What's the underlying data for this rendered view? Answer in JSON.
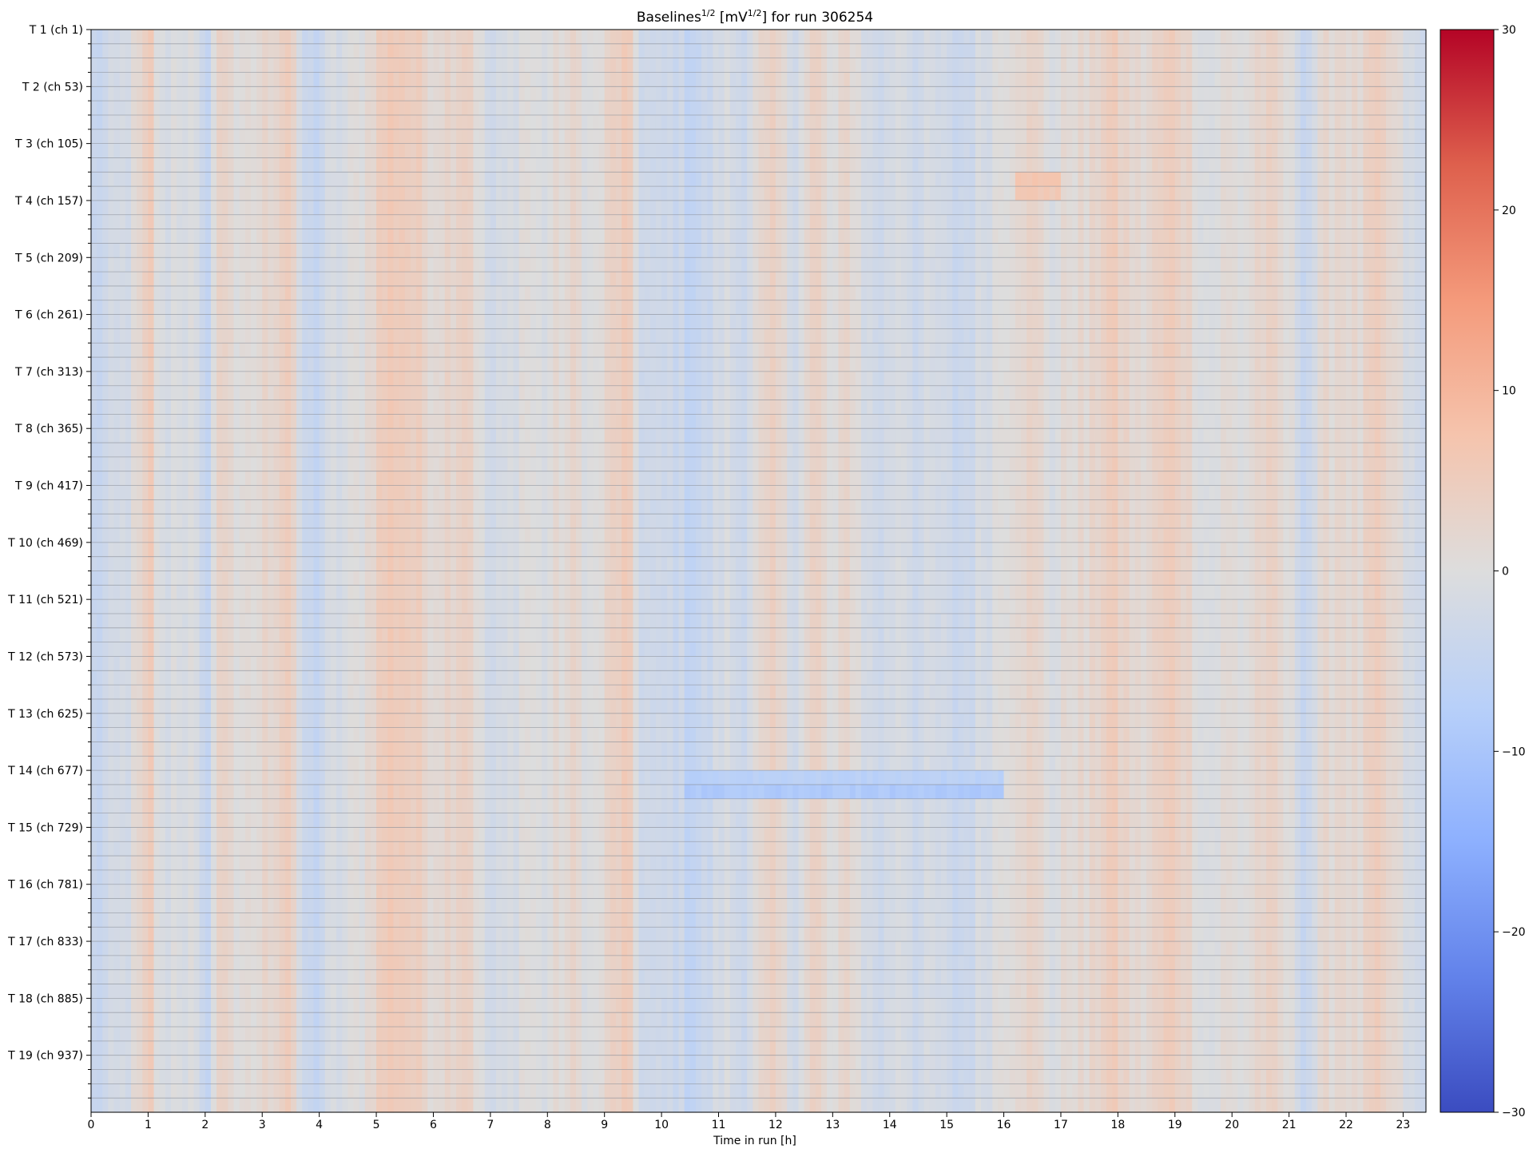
{
  "chart_data": {
    "type": "heatmap",
    "title": {
      "base": "Baselines",
      "sup": "1/2",
      "mid": " [mV",
      "sup2": "1/2",
      "tail": "] for run 306254"
    },
    "xlabel": "Time in run [h]",
    "ylabel": "",
    "xlim": [
      0,
      23.4
    ],
    "x_ticks": [
      0,
      1,
      2,
      3,
      4,
      5,
      6,
      7,
      8,
      9,
      10,
      11,
      12,
      13,
      14,
      15,
      16,
      17,
      18,
      19,
      20,
      21,
      22,
      23
    ],
    "x_tick_labels": [
      "0",
      "1",
      "2",
      "3",
      "4",
      "5",
      "6",
      "7",
      "8",
      "9",
      "10",
      "11",
      "12",
      "13",
      "14",
      "15",
      "16",
      "17",
      "18",
      "19",
      "20",
      "21",
      "22",
      "23"
    ],
    "y_tick_labels": [
      "T 1 (ch 1)",
      "T 2 (ch 53)",
      "T 3 (ch 105)",
      "T 4 (ch 157)",
      "T 5 (ch 209)",
      "T 6 (ch 261)",
      "T 7 (ch 313)",
      "T 8 (ch 365)",
      "T 9 (ch 417)",
      "T 10 (ch 469)",
      "T 11 (ch 521)",
      "T 12 (ch 573)",
      "T 13 (ch 625)",
      "T 14 (ch 677)",
      "T 15 (ch 729)",
      "T 16 (ch 781)",
      "T 17 (ch 833)",
      "T 18 (ch 885)",
      "T 19 (ch 937)"
    ],
    "n_rows": 76,
    "n_cols": 234,
    "colorbar": {
      "vmin": -30,
      "vmax": 30,
      "ticks": [
        -30,
        -20,
        -10,
        0,
        10,
        20,
        30
      ],
      "tick_labels": [
        "−30",
        "−20",
        "−10",
        "0",
        "10",
        "20",
        "30"
      ],
      "colormap": "coolwarm"
    },
    "time_profile_h_value": [
      [
        0.0,
        -5
      ],
      [
        0.15,
        -4
      ],
      [
        0.4,
        -3
      ],
      [
        0.6,
        -2
      ],
      [
        0.9,
        2
      ],
      [
        1.05,
        5
      ],
      [
        1.2,
        -2
      ],
      [
        1.5,
        0
      ],
      [
        1.8,
        -1
      ],
      [
        2.0,
        -6
      ],
      [
        2.2,
        2
      ],
      [
        2.4,
        4
      ],
      [
        2.6,
        -1
      ],
      [
        2.9,
        1
      ],
      [
        3.2,
        3
      ],
      [
        3.5,
        6
      ],
      [
        3.65,
        -3
      ],
      [
        3.9,
        -5
      ],
      [
        4.2,
        -2
      ],
      [
        4.5,
        -1
      ],
      [
        4.8,
        1
      ],
      [
        5.1,
        5
      ],
      [
        5.4,
        6
      ],
      [
        5.7,
        4
      ],
      [
        6.0,
        2
      ],
      [
        6.3,
        3
      ],
      [
        6.6,
        5
      ],
      [
        6.8,
        0
      ],
      [
        7.0,
        -3
      ],
      [
        7.3,
        -2
      ],
      [
        7.6,
        1
      ],
      [
        7.9,
        -1
      ],
      [
        8.2,
        1
      ],
      [
        8.5,
        2
      ],
      [
        8.8,
        -1
      ],
      [
        9.2,
        4
      ],
      [
        9.4,
        5
      ],
      [
        9.6,
        -2
      ],
      [
        9.9,
        -4
      ],
      [
        10.2,
        -3
      ],
      [
        10.5,
        -5
      ],
      [
        10.8,
        -4
      ],
      [
        11.1,
        -1
      ],
      [
        11.4,
        -3
      ],
      [
        11.7,
        1
      ],
      [
        12.0,
        3
      ],
      [
        12.3,
        -2
      ],
      [
        12.7,
        4
      ],
      [
        13.0,
        -1
      ],
      [
        13.3,
        3
      ],
      [
        13.6,
        -2
      ],
      [
        13.9,
        -3
      ],
      [
        14.2,
        0
      ],
      [
        14.5,
        -3
      ],
      [
        14.8,
        -2
      ],
      [
        15.1,
        -4
      ],
      [
        15.4,
        -3
      ],
      [
        15.7,
        -1
      ],
      [
        16.0,
        1
      ],
      [
        16.3,
        3
      ],
      [
        16.6,
        2
      ],
      [
        16.9,
        -1
      ],
      [
        17.2,
        2
      ],
      [
        17.5,
        1
      ],
      [
        17.8,
        5
      ],
      [
        18.1,
        3
      ],
      [
        18.4,
        1
      ],
      [
        18.8,
        4
      ],
      [
        19.0,
        5
      ],
      [
        19.3,
        2
      ],
      [
        19.6,
        -1
      ],
      [
        19.9,
        1
      ],
      [
        20.2,
        0
      ],
      [
        20.5,
        3
      ],
      [
        20.8,
        2
      ],
      [
        21.1,
        -1
      ],
      [
        21.3,
        -4
      ],
      [
        21.6,
        1
      ],
      [
        21.9,
        3
      ],
      [
        22.2,
        1
      ],
      [
        22.5,
        4
      ],
      [
        22.8,
        2
      ],
      [
        23.1,
        -2
      ],
      [
        23.4,
        -4
      ]
    ],
    "row_anomalies": [
      {
        "row": 53,
        "x_from_h": 10.4,
        "x_to_h": 16.0,
        "value": -9
      },
      {
        "row": 52,
        "x_from_h": 10.4,
        "x_to_h": 16.0,
        "value": -7
      },
      {
        "row": 10,
        "x_from_h": 16.2,
        "x_to_h": 17.0,
        "value": 7
      },
      {
        "row": 11,
        "x_from_h": 16.2,
        "x_to_h": 17.0,
        "value": 6
      }
    ]
  }
}
